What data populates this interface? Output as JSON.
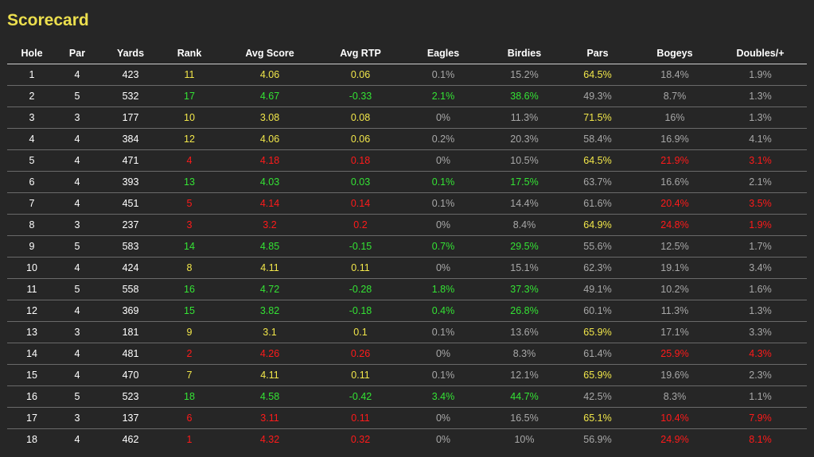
{
  "title": "Scorecard",
  "colors": {
    "background": "#262626",
    "title": "#ecdf4e",
    "yellow": "#f2e74a",
    "green": "#34e334",
    "red": "#ff1a1a",
    "gray": "#a8a8a8",
    "white": "#ffffff"
  },
  "columns": [
    "Hole",
    "Par",
    "Yards",
    "Rank",
    "Avg Score",
    "Avg RTP",
    "Eagles",
    "Birdies",
    "Pars",
    "Bogeys",
    "Doubles/+"
  ],
  "rows": [
    {
      "cells": [
        "1",
        "4",
        "423",
        "11",
        "4.06",
        "0.06",
        "0.1%",
        "15.2%",
        "64.5%",
        "18.4%",
        "1.9%"
      ],
      "colors": [
        "white",
        "white",
        "white",
        "yellow",
        "yellow",
        "yellow",
        "gray",
        "gray",
        "yellow",
        "gray",
        "gray"
      ]
    },
    {
      "cells": [
        "2",
        "5",
        "532",
        "17",
        "4.67",
        "-0.33",
        "2.1%",
        "38.6%",
        "49.3%",
        "8.7%",
        "1.3%"
      ],
      "colors": [
        "white",
        "white",
        "white",
        "green",
        "green",
        "green",
        "green",
        "green",
        "gray",
        "gray",
        "gray"
      ]
    },
    {
      "cells": [
        "3",
        "3",
        "177",
        "10",
        "3.08",
        "0.08",
        "0%",
        "11.3%",
        "71.5%",
        "16%",
        "1.3%"
      ],
      "colors": [
        "white",
        "white",
        "white",
        "yellow",
        "yellow",
        "yellow",
        "gray",
        "gray",
        "yellow",
        "gray",
        "gray"
      ]
    },
    {
      "cells": [
        "4",
        "4",
        "384",
        "12",
        "4.06",
        "0.06",
        "0.2%",
        "20.3%",
        "58.4%",
        "16.9%",
        "4.1%"
      ],
      "colors": [
        "white",
        "white",
        "white",
        "yellow",
        "yellow",
        "yellow",
        "gray",
        "gray",
        "gray",
        "gray",
        "gray"
      ]
    },
    {
      "cells": [
        "5",
        "4",
        "471",
        "4",
        "4.18",
        "0.18",
        "0%",
        "10.5%",
        "64.5%",
        "21.9%",
        "3.1%"
      ],
      "colors": [
        "white",
        "white",
        "white",
        "red",
        "red",
        "red",
        "gray",
        "gray",
        "yellow",
        "red",
        "red"
      ]
    },
    {
      "cells": [
        "6",
        "4",
        "393",
        "13",
        "4.03",
        "0.03",
        "0.1%",
        "17.5%",
        "63.7%",
        "16.6%",
        "2.1%"
      ],
      "colors": [
        "white",
        "white",
        "white",
        "green",
        "green",
        "green",
        "green",
        "green",
        "gray",
        "gray",
        "gray"
      ]
    },
    {
      "cells": [
        "7",
        "4",
        "451",
        "5",
        "4.14",
        "0.14",
        "0.1%",
        "14.4%",
        "61.6%",
        "20.4%",
        "3.5%"
      ],
      "colors": [
        "white",
        "white",
        "white",
        "red",
        "red",
        "red",
        "gray",
        "gray",
        "gray",
        "red",
        "red"
      ]
    },
    {
      "cells": [
        "8",
        "3",
        "237",
        "3",
        "3.2",
        "0.2",
        "0%",
        "8.4%",
        "64.9%",
        "24.8%",
        "1.9%"
      ],
      "colors": [
        "white",
        "white",
        "white",
        "red",
        "red",
        "red",
        "gray",
        "gray",
        "yellow",
        "red",
        "red"
      ]
    },
    {
      "cells": [
        "9",
        "5",
        "583",
        "14",
        "4.85",
        "-0.15",
        "0.7%",
        "29.5%",
        "55.6%",
        "12.5%",
        "1.7%"
      ],
      "colors": [
        "white",
        "white",
        "white",
        "green",
        "green",
        "green",
        "green",
        "green",
        "gray",
        "gray",
        "gray"
      ]
    },
    {
      "cells": [
        "10",
        "4",
        "424",
        "8",
        "4.11",
        "0.11",
        "0%",
        "15.1%",
        "62.3%",
        "19.1%",
        "3.4%"
      ],
      "colors": [
        "white",
        "white",
        "white",
        "yellow",
        "yellow",
        "yellow",
        "gray",
        "gray",
        "gray",
        "gray",
        "gray"
      ]
    },
    {
      "cells": [
        "11",
        "5",
        "558",
        "16",
        "4.72",
        "-0.28",
        "1.8%",
        "37.3%",
        "49.1%",
        "10.2%",
        "1.6%"
      ],
      "colors": [
        "white",
        "white",
        "white",
        "green",
        "green",
        "green",
        "green",
        "green",
        "gray",
        "gray",
        "gray"
      ]
    },
    {
      "cells": [
        "12",
        "4",
        "369",
        "15",
        "3.82",
        "-0.18",
        "0.4%",
        "26.8%",
        "60.1%",
        "11.3%",
        "1.3%"
      ],
      "colors": [
        "white",
        "white",
        "white",
        "green",
        "green",
        "green",
        "green",
        "green",
        "gray",
        "gray",
        "gray"
      ]
    },
    {
      "cells": [
        "13",
        "3",
        "181",
        "9",
        "3.1",
        "0.1",
        "0.1%",
        "13.6%",
        "65.9%",
        "17.1%",
        "3.3%"
      ],
      "colors": [
        "white",
        "white",
        "white",
        "yellow",
        "yellow",
        "yellow",
        "gray",
        "gray",
        "yellow",
        "gray",
        "gray"
      ]
    },
    {
      "cells": [
        "14",
        "4",
        "481",
        "2",
        "4.26",
        "0.26",
        "0%",
        "8.3%",
        "61.4%",
        "25.9%",
        "4.3%"
      ],
      "colors": [
        "white",
        "white",
        "white",
        "red",
        "red",
        "red",
        "gray",
        "gray",
        "gray",
        "red",
        "red"
      ]
    },
    {
      "cells": [
        "15",
        "4",
        "470",
        "7",
        "4.11",
        "0.11",
        "0.1%",
        "12.1%",
        "65.9%",
        "19.6%",
        "2.3%"
      ],
      "colors": [
        "white",
        "white",
        "white",
        "yellow",
        "yellow",
        "yellow",
        "gray",
        "gray",
        "yellow",
        "gray",
        "gray"
      ]
    },
    {
      "cells": [
        "16",
        "5",
        "523",
        "18",
        "4.58",
        "-0.42",
        "3.4%",
        "44.7%",
        "42.5%",
        "8.3%",
        "1.1%"
      ],
      "colors": [
        "white",
        "white",
        "white",
        "green",
        "green",
        "green",
        "green",
        "green",
        "gray",
        "gray",
        "gray"
      ]
    },
    {
      "cells": [
        "17",
        "3",
        "137",
        "6",
        "3.11",
        "0.11",
        "0%",
        "16.5%",
        "65.1%",
        "10.4%",
        "7.9%"
      ],
      "colors": [
        "white",
        "white",
        "white",
        "red",
        "red",
        "red",
        "gray",
        "gray",
        "yellow",
        "red",
        "red"
      ]
    },
    {
      "cells": [
        "18",
        "4",
        "462",
        "1",
        "4.32",
        "0.32",
        "0%",
        "10%",
        "56.9%",
        "24.9%",
        "8.1%"
      ],
      "colors": [
        "white",
        "white",
        "white",
        "red",
        "red",
        "red",
        "gray",
        "gray",
        "gray",
        "red",
        "red"
      ]
    }
  ]
}
